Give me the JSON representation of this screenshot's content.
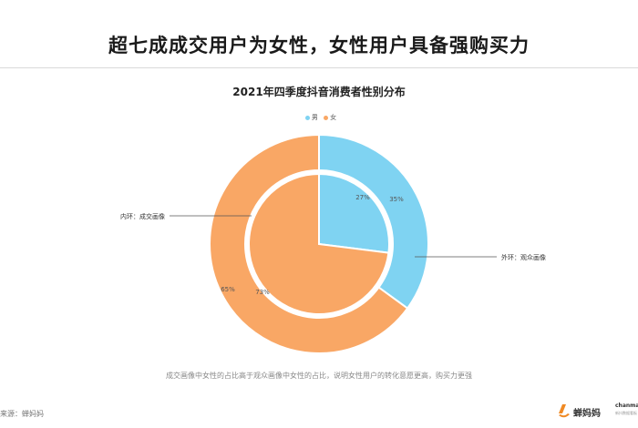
{
  "headline": "超七成成交用户为女性，女性用户具备强购买力",
  "chart_data": {
    "type": "pie",
    "title": "2021年四季度抖音消费者性别分布",
    "legend": [
      {
        "name": "男",
        "color": "#7fd3f2"
      },
      {
        "name": "女",
        "color": "#f9a765"
      }
    ],
    "legend_position": "top-center",
    "rings": [
      {
        "name": "内环：成交画像",
        "values": [
          {
            "label": "男",
            "value": 27
          },
          {
            "label": "女",
            "value": 73
          }
        ]
      },
      {
        "name": "外环：观众画像",
        "values": [
          {
            "label": "男",
            "value": 35
          },
          {
            "label": "女",
            "value": 65
          }
        ]
      }
    ],
    "value_labels": {
      "inner_male": "27%",
      "inner_female": "73%",
      "outer_male": "35%",
      "outer_female": "65%"
    }
  },
  "caption": "成交画像中女性的占比高于观众画像中女性的占比，说明女性用户的转化意愿更高，购买力更强",
  "source": "来源：蝉妈妈",
  "logo": {
    "name": "蝉妈妈",
    "en": "chanmama",
    "en_sub": "新抖数据看板"
  }
}
